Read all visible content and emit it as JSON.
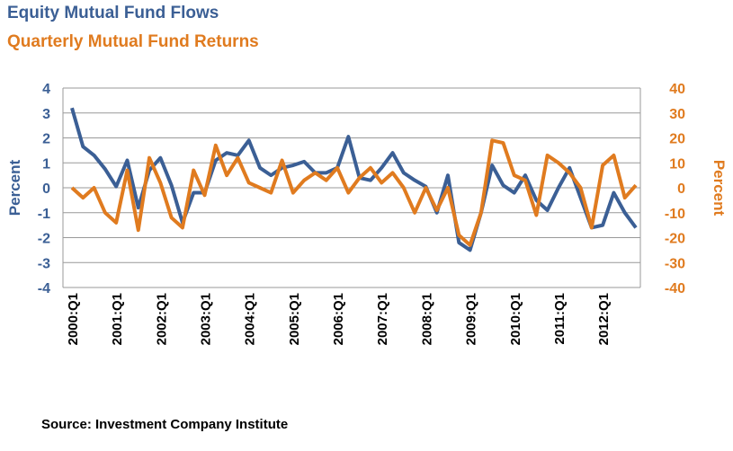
{
  "chart_data": {
    "type": "line",
    "title": "Equity Mutual Fund Flows",
    "subtitle": "Quarterly Mutual Fund Returns",
    "ylabel": "Percent",
    "y2label": "Percent",
    "source": "Source: Investment Company Institute",
    "categories": [
      "2000:Q1",
      null,
      null,
      null,
      "2001:Q1",
      null,
      null,
      null,
      "2002:Q1",
      null,
      null,
      null,
      "2003:Q1",
      null,
      null,
      null,
      "2004:Q1",
      null,
      null,
      null,
      "2005:Q1",
      null,
      null,
      null,
      "2006:Q1",
      null,
      null,
      null,
      "2007:Q1",
      null,
      null,
      null,
      "2008:Q1",
      null,
      null,
      null,
      "2009:Q1",
      null,
      null,
      null,
      "2010:Q1",
      null,
      null,
      null,
      "2011:Q1",
      null,
      null,
      null,
      "2012:Q1",
      null,
      null,
      null
    ],
    "series": [
      {
        "name": "Equity Mutual Fund Flows",
        "color": "#3b5f95",
        "values": [
          3.2,
          1.65,
          1.3,
          0.75,
          0.05,
          1.1,
          -0.8,
          0.7,
          1.2,
          0.1,
          -1.4,
          -0.2,
          -0.2,
          1.1,
          1.4,
          1.3,
          1.9,
          0.8,
          0.5,
          0.8,
          0.9,
          1.05,
          0.6,
          0.6,
          0.8,
          2.05,
          0.4,
          0.3,
          0.8,
          1.4,
          0.6,
          0.3,
          0.05,
          -1.0,
          0.5,
          -2.2,
          -2.5,
          -1.0,
          0.9,
          0.1,
          -0.2,
          0.5,
          -0.5,
          -0.9,
          0.0,
          0.8,
          -0.4,
          -1.6,
          -1.5,
          -0.2,
          -1.0,
          -1.6
        ]
      },
      {
        "name": "Quarterly Mutual Fund Returns",
        "color": "#e07b1f",
        "axis": "y2",
        "values": [
          0,
          -4,
          0,
          -10,
          -14,
          7,
          -17,
          12,
          2,
          -12,
          -16,
          7,
          -3,
          17,
          5,
          12,
          2,
          0,
          -2,
          11,
          -2,
          3,
          6,
          3,
          8,
          -2,
          4,
          8,
          2,
          6,
          0,
          -10,
          0,
          -9,
          0,
          -19,
          -23,
          -10,
          19,
          18,
          5,
          3,
          -11,
          13,
          10,
          6,
          0,
          -16,
          9,
          13,
          -4,
          1
        ]
      }
    ],
    "ylim": [
      -4,
      4
    ],
    "yticks": [
      -4,
      -3,
      -2,
      -1,
      0,
      1,
      2,
      3,
      4
    ],
    "y2lim": [
      -40,
      40
    ],
    "y2ticks": [
      -40,
      -30,
      -20,
      -10,
      0,
      10,
      20,
      30,
      40
    ],
    "grid": true
  }
}
